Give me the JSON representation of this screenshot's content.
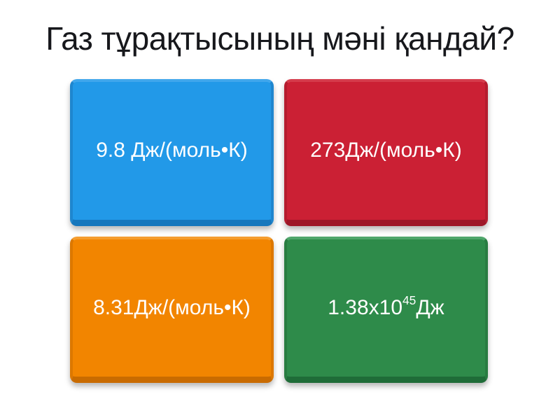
{
  "question": {
    "title": "Газ тұрақтысының мәні қандай?",
    "title_color": "#17181c"
  },
  "answers": [
    {
      "label": "9.8 Дж/(моль•К)",
      "sup": "",
      "suffix": "",
      "colors": {
        "face": "#2299e8",
        "top": "#41a7ec",
        "side": "#1e86cf",
        "bevel": "#1677bd"
      }
    },
    {
      "label": "273Дж/(моль•К)",
      "sup": "",
      "suffix": "",
      "colors": {
        "face": "#cb2034",
        "top": "#d53c4c",
        "side": "#b51c2e",
        "bevel": "#9e1728"
      }
    },
    {
      "label": "8.31Дж/(моль•К)",
      "sup": "",
      "suffix": "",
      "colors": {
        "face": "#f28500",
        "top": "#f59d2e",
        "side": "#dd7800",
        "bevel": "#c96b00"
      }
    },
    {
      "label": "1.38x10",
      "sup": "45",
      "suffix": "Дж",
      "colors": {
        "face": "#2e8b4a",
        "top": "#4fa66b",
        "side": "#287c41",
        "bevel": "#1f6c38"
      }
    }
  ],
  "answer_text_color": "#ffffff",
  "page_background": "#ffffff"
}
